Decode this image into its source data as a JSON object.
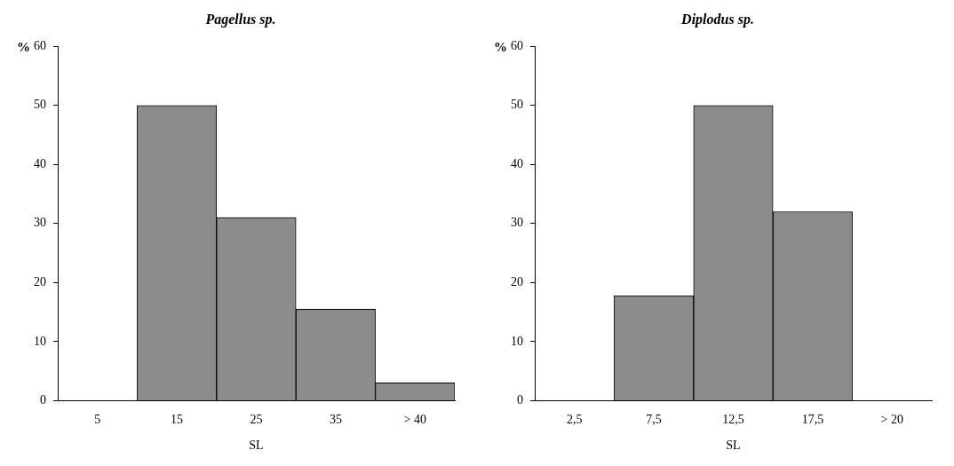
{
  "chart_data": [
    {
      "type": "bar",
      "title": "Pagellus sp.",
      "xlabel": "SL",
      "ylabel": "%",
      "categories": [
        "5",
        "15",
        "25",
        "35",
        "> 40"
      ],
      "values": [
        0,
        50,
        31,
        15.5,
        3
      ],
      "color": "#8c8c8c",
      "ylim": [
        0,
        60
      ],
      "yticks": [
        0,
        10,
        20,
        30,
        40,
        50,
        60
      ],
      "grid": false,
      "legend": false
    },
    {
      "type": "bar",
      "title": "Diplodus sp.",
      "xlabel": "SL",
      "ylabel": "%",
      "categories": [
        "2,5",
        "7,5",
        "12,5",
        "17,5",
        "> 20"
      ],
      "values": [
        0,
        17.8,
        50,
        32,
        0
      ],
      "color": "#8c8c8c",
      "ylim": [
        0,
        60
      ],
      "yticks": [
        0,
        10,
        20,
        30,
        40,
        50,
        60
      ],
      "grid": false,
      "legend": false
    }
  ]
}
